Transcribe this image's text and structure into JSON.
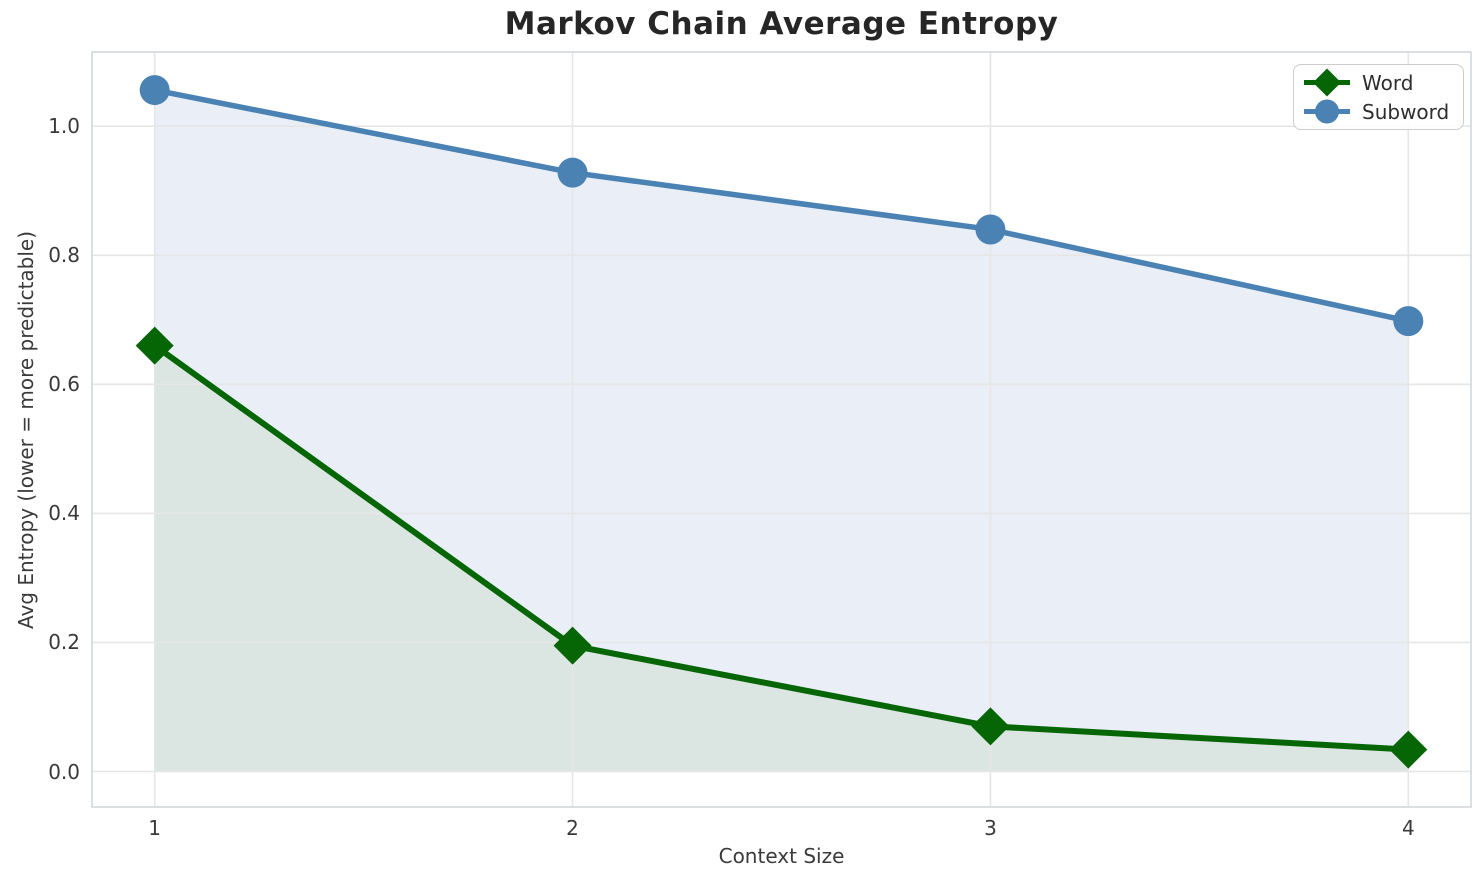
{
  "chart_data": {
    "type": "line",
    "title": "Markov Chain Average Entropy",
    "xlabel": "Context Size",
    "ylabel": "Avg Entropy (lower = more predictable)",
    "x": [
      1,
      2,
      3,
      4
    ],
    "series": [
      {
        "name": "Word",
        "values": [
          0.66,
          0.195,
          0.07,
          0.034
        ],
        "color": "#066606",
        "marker": "diamond",
        "fill_color": "#dbe5e1"
      },
      {
        "name": "Subword",
        "values": [
          1.056,
          0.928,
          0.84,
          0.698
        ],
        "color": "#4a82b4",
        "marker": "circle",
        "fill_color": "#e9eef7"
      }
    ],
    "xlim": [
      0.85,
      4.15
    ],
    "ylim": [
      -0.055,
      1.115
    ],
    "xticks": [
      "1",
      "2",
      "3",
      "4"
    ],
    "yticks": [
      "0.0",
      "0.2",
      "0.4",
      "0.6",
      "0.8",
      "1.0"
    ],
    "grid": true,
    "grid_color": "#e6e6e6",
    "frame_color": "#d4d7da",
    "legend_position": "upper right",
    "legend": [
      "Word",
      "Subword"
    ]
  }
}
